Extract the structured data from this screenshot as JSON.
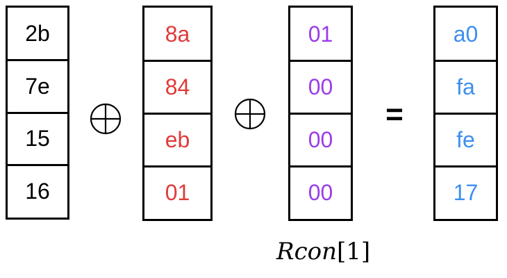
{
  "columns": [
    {
      "name": "column-word",
      "color": "#000000",
      "values": [
        "2b",
        "7e",
        "15",
        "16"
      ]
    },
    {
      "name": "column-subword",
      "color": "#e03a3a",
      "values": [
        "8a",
        "84",
        "eb",
        "01"
      ]
    },
    {
      "name": "column-rcon",
      "color": "#9b3de8",
      "values": [
        "01",
        "00",
        "00",
        "00"
      ]
    },
    {
      "name": "column-result",
      "color": "#3d8ef0",
      "values": [
        "a0",
        "fa",
        "fe",
        "17"
      ]
    }
  ],
  "operators": {
    "xor_symbol": "⊕",
    "equals": "="
  },
  "rcon_label": {
    "name": "Rcon",
    "index": "[1]"
  }
}
